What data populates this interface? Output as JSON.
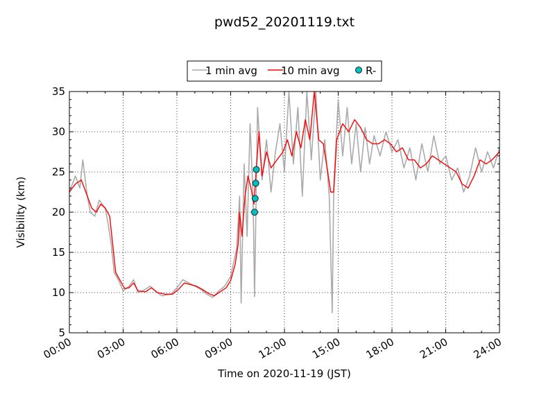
{
  "chart_data": {
    "type": "line",
    "title": "pwd52_20201119.txt",
    "xlabel": "Time on 2020-11-19 (JST)",
    "ylabel": "Visibility (km)",
    "xlim": [
      "00:00",
      "24:00"
    ],
    "ylim": [
      5,
      35
    ],
    "x_ticks": [
      "00:00",
      "03:00",
      "06:00",
      "09:00",
      "12:00",
      "15:00",
      "18:00",
      "21:00",
      "24:00"
    ],
    "y_ticks": [
      5,
      10,
      15,
      20,
      25,
      30,
      35
    ],
    "grid": true,
    "legend_position": "top-center",
    "series": [
      {
        "name": "1 min avg",
        "color": "#aaaaaa",
        "kind": "line",
        "points": [
          [
            "00:00",
            22.5
          ],
          [
            "00:20",
            24.5
          ],
          [
            "00:35",
            23.0
          ],
          [
            "00:45",
            26.5
          ],
          [
            "01:00",
            22.0
          ],
          [
            "01:10",
            20.0
          ],
          [
            "01:25",
            19.5
          ],
          [
            "01:40",
            21.5
          ],
          [
            "02:00",
            20.5
          ],
          [
            "02:10",
            18.5
          ],
          [
            "02:20",
            16.0
          ],
          [
            "02:30",
            12.5
          ],
          [
            "02:45",
            11.5
          ],
          [
            "03:00",
            10.2
          ],
          [
            "03:20",
            10.8
          ],
          [
            "03:35",
            11.6
          ],
          [
            "03:50",
            10.0
          ],
          [
            "04:10",
            10.3
          ],
          [
            "04:30",
            10.8
          ],
          [
            "04:50",
            10.1
          ],
          [
            "05:10",
            9.6
          ],
          [
            "05:40",
            9.8
          ],
          [
            "06:00",
            10.6
          ],
          [
            "06:20",
            11.6
          ],
          [
            "06:40",
            11.2
          ],
          [
            "07:00",
            10.8
          ],
          [
            "07:20",
            10.4
          ],
          [
            "07:40",
            9.8
          ],
          [
            "08:00",
            9.4
          ],
          [
            "08:20",
            10.2
          ],
          [
            "08:40",
            10.8
          ],
          [
            "09:00",
            12.0
          ],
          [
            "09:20",
            15.5
          ],
          [
            "09:30",
            22.0
          ],
          [
            "09:35",
            8.7
          ],
          [
            "09:45",
            26.0
          ],
          [
            "09:55",
            17.0
          ],
          [
            "10:05",
            31.0
          ],
          [
            "10:15",
            22.0
          ],
          [
            "10:20",
            9.5
          ],
          [
            "10:30",
            33.0
          ],
          [
            "10:45",
            24.0
          ],
          [
            "11:00",
            29.0
          ],
          [
            "11:15",
            22.5
          ],
          [
            "11:30",
            27.5
          ],
          [
            "11:45",
            31.0
          ],
          [
            "12:00",
            25.0
          ],
          [
            "12:15",
            35.0
          ],
          [
            "12:30",
            26.0
          ],
          [
            "12:45",
            33.0
          ],
          [
            "13:00",
            22.0
          ],
          [
            "13:15",
            35.0
          ],
          [
            "13:30",
            26.5
          ],
          [
            "13:45",
            35.0
          ],
          [
            "14:00",
            24.0
          ],
          [
            "14:15",
            29.0
          ],
          [
            "14:30",
            22.0
          ],
          [
            "14:40",
            7.5
          ],
          [
            "14:45",
            23.0
          ],
          [
            "15:00",
            34.0
          ],
          [
            "15:15",
            27.0
          ],
          [
            "15:30",
            33.0
          ],
          [
            "15:45",
            26.0
          ],
          [
            "16:00",
            31.0
          ],
          [
            "16:15",
            25.0
          ],
          [
            "16:30",
            30.5
          ],
          [
            "16:45",
            26.0
          ],
          [
            "17:00",
            29.5
          ],
          [
            "17:20",
            27.0
          ],
          [
            "17:40",
            30.0
          ],
          [
            "18:00",
            27.5
          ],
          [
            "18:20",
            29.0
          ],
          [
            "18:40",
            25.5
          ],
          [
            "19:00",
            28.0
          ],
          [
            "19:20",
            24.0
          ],
          [
            "19:40",
            28.5
          ],
          [
            "20:00",
            25.0
          ],
          [
            "20:20",
            29.5
          ],
          [
            "20:40",
            26.0
          ],
          [
            "21:00",
            27.0
          ],
          [
            "21:20",
            24.0
          ],
          [
            "21:40",
            25.5
          ],
          [
            "22:00",
            22.5
          ],
          [
            "22:20",
            24.5
          ],
          [
            "22:40",
            28.0
          ],
          [
            "23:00",
            25.0
          ],
          [
            "23:20",
            27.5
          ],
          [
            "23:40",
            25.5
          ],
          [
            "24:00",
            28.0
          ]
        ]
      },
      {
        "name": "10 min avg",
        "color": "#ff0000",
        "kind": "line",
        "points": [
          [
            "00:00",
            22.5
          ],
          [
            "00:20",
            23.5
          ],
          [
            "00:40",
            24.0
          ],
          [
            "01:00",
            22.0
          ],
          [
            "01:15",
            20.5
          ],
          [
            "01:30",
            20.0
          ],
          [
            "01:45",
            21.0
          ],
          [
            "02:00",
            20.5
          ],
          [
            "02:15",
            19.5
          ],
          [
            "02:25",
            16.0
          ],
          [
            "02:35",
            12.5
          ],
          [
            "02:50",
            11.5
          ],
          [
            "03:05",
            10.5
          ],
          [
            "03:20",
            10.6
          ],
          [
            "03:35",
            11.2
          ],
          [
            "03:50",
            10.2
          ],
          [
            "04:15",
            10.1
          ],
          [
            "04:35",
            10.6
          ],
          [
            "04:55",
            10.0
          ],
          [
            "05:20",
            9.8
          ],
          [
            "05:45",
            9.8
          ],
          [
            "06:05",
            10.4
          ],
          [
            "06:25",
            11.2
          ],
          [
            "06:45",
            11.0
          ],
          [
            "07:05",
            10.8
          ],
          [
            "07:25",
            10.4
          ],
          [
            "07:45",
            9.9
          ],
          [
            "08:05",
            9.6
          ],
          [
            "08:25",
            10.1
          ],
          [
            "08:45",
            10.6
          ],
          [
            "09:00",
            11.5
          ],
          [
            "09:15",
            13.5
          ],
          [
            "09:25",
            16.0
          ],
          [
            "09:30",
            20.0
          ],
          [
            "09:38",
            17.0
          ],
          [
            "09:48",
            22.0
          ],
          [
            "09:58",
            24.5
          ],
          [
            "10:08",
            23.0
          ],
          [
            "10:18",
            21.0
          ],
          [
            "10:25",
            25.0
          ],
          [
            "10:35",
            30.0
          ],
          [
            "10:45",
            24.5
          ],
          [
            "11:00",
            27.5
          ],
          [
            "11:15",
            25.5
          ],
          [
            "11:35",
            26.5
          ],
          [
            "11:55",
            27.5
          ],
          [
            "12:10",
            29.0
          ],
          [
            "12:25",
            27.0
          ],
          [
            "12:40",
            30.0
          ],
          [
            "12:55",
            28.0
          ],
          [
            "13:10",
            31.5
          ],
          [
            "13:25",
            29.0
          ],
          [
            "13:40",
            35.0
          ],
          [
            "13:55",
            29.0
          ],
          [
            "14:10",
            28.5
          ],
          [
            "14:25",
            25.0
          ],
          [
            "14:35",
            22.5
          ],
          [
            "14:45",
            22.5
          ],
          [
            "14:55",
            29.0
          ],
          [
            "15:15",
            31.0
          ],
          [
            "15:35",
            30.0
          ],
          [
            "15:55",
            31.5
          ],
          [
            "16:15",
            30.5
          ],
          [
            "16:35",
            29.0
          ],
          [
            "16:55",
            28.5
          ],
          [
            "17:15",
            28.5
          ],
          [
            "17:35",
            29.0
          ],
          [
            "17:55",
            28.5
          ],
          [
            "18:15",
            27.5
          ],
          [
            "18:35",
            28.0
          ],
          [
            "18:55",
            26.5
          ],
          [
            "19:15",
            26.5
          ],
          [
            "19:35",
            25.5
          ],
          [
            "19:55",
            26.0
          ],
          [
            "20:15",
            27.0
          ],
          [
            "20:35",
            26.5
          ],
          [
            "20:55",
            26.0
          ],
          [
            "21:15",
            25.5
          ],
          [
            "21:35",
            25.0
          ],
          [
            "21:55",
            23.5
          ],
          [
            "22:15",
            23.0
          ],
          [
            "22:35",
            24.5
          ],
          [
            "22:55",
            26.5
          ],
          [
            "23:15",
            26.0
          ],
          [
            "23:35",
            26.5
          ],
          [
            "24:00",
            27.5
          ]
        ]
      },
      {
        "name": "R-",
        "color": "#00bfbf",
        "kind": "scatter",
        "points": [
          [
            "10:20",
            20.0
          ],
          [
            "10:22",
            21.7
          ],
          [
            "10:24",
            23.6
          ],
          [
            "10:26",
            25.3
          ]
        ]
      }
    ]
  }
}
